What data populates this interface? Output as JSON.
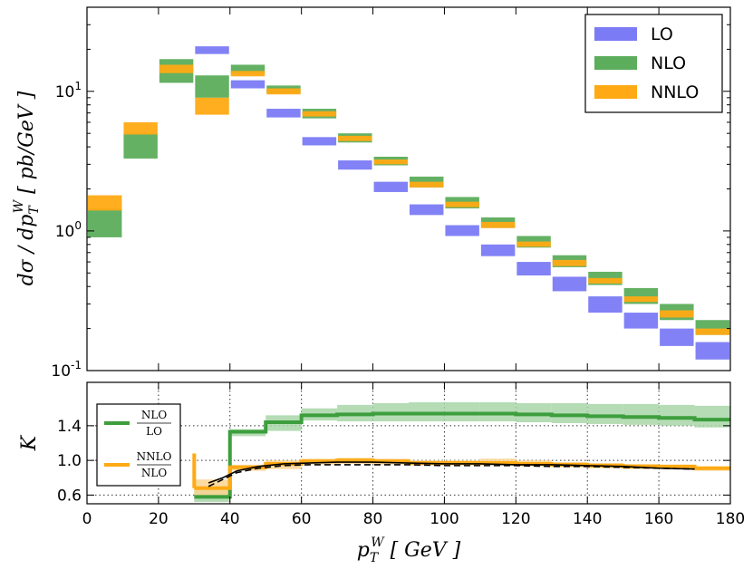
{
  "chart_data": [
    {
      "type": "bar",
      "subtype": "uncertainty-band histogram",
      "xlim": [
        0,
        180
      ],
      "ylim": [
        0.1,
        40
      ],
      "yscale": "log",
      "ylabel": "dσ / dp_T^W  [ pb/GeV ]",
      "ytick_labels": [
        {
          "base": "10",
          "exp": "-1",
          "value": 0.1
        },
        {
          "base": "10",
          "exp": "0",
          "value": 1
        },
        {
          "base": "10",
          "exp": "1",
          "value": 10
        }
      ],
      "grid": false,
      "legend_position": "top-right",
      "bin_edges": [
        0,
        10,
        20,
        30,
        40,
        50,
        60,
        70,
        80,
        90,
        100,
        110,
        120,
        130,
        140,
        150,
        160,
        170,
        180
      ],
      "series": [
        {
          "name": "LO",
          "color": "#7b7bf5",
          "bands": [
            null,
            null,
            null,
            [
              18.5,
              21.0
            ],
            [
              10.5,
              12.0
            ],
            [
              6.5,
              7.5
            ],
            [
              4.1,
              4.7
            ],
            [
              2.75,
              3.2
            ],
            [
              1.9,
              2.25
            ],
            [
              1.3,
              1.55
            ],
            [
              0.92,
              1.1
            ],
            [
              0.66,
              0.8
            ],
            [
              0.48,
              0.6
            ],
            [
              0.37,
              0.47
            ],
            [
              0.26,
              0.34
            ],
            [
              0.2,
              0.26
            ],
            [
              0.15,
              0.2
            ],
            [
              0.12,
              0.16
            ]
          ]
        },
        {
          "name": "NLO",
          "color": "#5cad5c",
          "bands": [
            [
              0.9,
              1.45
            ],
            [
              3.3,
              5.0
            ],
            [
              11.5,
              17.0
            ],
            [
              9.0,
              13.0
            ],
            [
              13.3,
              15.5
            ],
            [
              9.7,
              11.0
            ],
            [
              6.4,
              7.5
            ],
            [
              4.3,
              5.0
            ],
            [
              2.95,
              3.4
            ],
            [
              2.05,
              2.45
            ],
            [
              1.45,
              1.75
            ],
            [
              1.05,
              1.25
            ],
            [
              0.76,
              0.92
            ],
            [
              0.55,
              0.67
            ],
            [
              0.41,
              0.51
            ],
            [
              0.3,
              0.39
            ],
            [
              0.23,
              0.3
            ],
            [
              0.18,
              0.23
            ]
          ]
        },
        {
          "name": "NNLO",
          "color": "#ffaa14",
          "bands": [
            [
              1.4,
              1.8
            ],
            [
              4.9,
              6.0
            ],
            [
              13.5,
              15.5
            ],
            [
              6.8,
              9.0
            ],
            [
              12.8,
              14.0
            ],
            [
              9.5,
              10.5
            ],
            [
              6.6,
              7.2
            ],
            [
              4.4,
              4.8
            ],
            [
              3.0,
              3.25
            ],
            [
              2.05,
              2.25
            ],
            [
              1.48,
              1.62
            ],
            [
              1.05,
              1.16
            ],
            [
              0.77,
              0.84
            ],
            [
              0.56,
              0.62
            ],
            [
              0.42,
              0.46
            ],
            [
              0.31,
              0.34
            ],
            [
              0.24,
              0.27
            ],
            [
              0.18,
              0.2
            ]
          ]
        }
      ]
    },
    {
      "type": "line",
      "subtype": "ratio step plot",
      "xlim": [
        0,
        180
      ],
      "ylim": [
        0.5,
        1.9
      ],
      "xlabel": "p_T^W [ GeV ]",
      "ylabel": "K",
      "xticks": [
        0,
        20,
        40,
        60,
        80,
        100,
        120,
        140,
        160,
        180
      ],
      "yticks": [
        0.6,
        1.0,
        1.4
      ],
      "ytick_labels": [
        "0.6",
        "1.0",
        "1.4"
      ],
      "grid": true,
      "legend_position": "left",
      "bin_edges": [
        30,
        40,
        50,
        60,
        70,
        80,
        90,
        100,
        110,
        120,
        130,
        140,
        150,
        160,
        170,
        180
      ],
      "series": [
        {
          "name": {
            "num": "NLO",
            "den": "LO"
          },
          "color": "#3d9e3d",
          "band_color": "#a8d6a8",
          "values": [
            0.58,
            1.33,
            1.44,
            1.52,
            1.53,
            1.54,
            1.54,
            1.54,
            1.54,
            1.53,
            1.52,
            1.51,
            1.5,
            1.49,
            1.47
          ],
          "band": [
            [
              0.52,
              0.66
            ],
            [
              1.28,
              1.36
            ],
            [
              1.34,
              1.52
            ],
            [
              1.46,
              1.6
            ],
            [
              1.45,
              1.64
            ],
            [
              1.45,
              1.66
            ],
            [
              1.45,
              1.67
            ],
            [
              1.45,
              1.67
            ],
            [
              1.45,
              1.67
            ],
            [
              1.44,
              1.66
            ],
            [
              1.43,
              1.66
            ],
            [
              1.42,
              1.65
            ],
            [
              1.41,
              1.65
            ],
            [
              1.4,
              1.64
            ],
            [
              1.38,
              1.63
            ]
          ]
        },
        {
          "name": {
            "num": "NNLO",
            "den": "NLO"
          },
          "color": "#ffaa14",
          "band_color": "#fcd590",
          "values": [
            0.68,
            0.92,
            0.96,
            0.99,
            1.0,
            0.99,
            0.97,
            0.97,
            0.97,
            0.96,
            0.95,
            0.94,
            0.93,
            0.93,
            0.91
          ],
          "band": [
            [
              0.6,
              0.78
            ],
            [
              0.88,
              0.95
            ],
            [
              0.9,
              1.0
            ],
            [
              0.95,
              1.02
            ],
            [
              0.96,
              1.03
            ],
            [
              0.95,
              1.02
            ],
            [
              0.94,
              1.0
            ],
            [
              0.94,
              1.0
            ],
            [
              0.94,
              1.02
            ],
            [
              0.93,
              1.0
            ],
            [
              0.92,
              0.98
            ],
            [
              0.91,
              0.97
            ],
            [
              0.9,
              0.96
            ],
            [
              0.9,
              0.95
            ],
            [
              0.88,
              0.93
            ]
          ],
          "spike": {
            "x": 30,
            "top": 1.08
          }
        },
        {
          "color": "#000000",
          "style": "solid",
          "x": [
            34,
            38,
            42,
            48,
            55,
            62,
            70,
            80,
            90,
            100,
            110,
            120,
            130,
            140,
            150,
            160,
            170
          ],
          "values": [
            0.74,
            0.8,
            0.88,
            0.93,
            0.96,
            0.97,
            0.98,
            0.98,
            0.97,
            0.96,
            0.96,
            0.95,
            0.95,
            0.94,
            0.93,
            0.91,
            0.9
          ]
        },
        {
          "color": "#000000",
          "style": "dashed",
          "x": [
            34,
            38,
            42,
            48,
            55,
            62,
            70,
            80,
            90,
            100,
            110,
            120,
            130,
            140,
            150,
            160,
            170
          ],
          "values": [
            0.7,
            0.78,
            0.86,
            0.91,
            0.94,
            0.95,
            0.95,
            0.95,
            0.95,
            0.94,
            0.94,
            0.94,
            0.93,
            0.93,
            0.92,
            0.91,
            0.9
          ]
        }
      ]
    }
  ]
}
